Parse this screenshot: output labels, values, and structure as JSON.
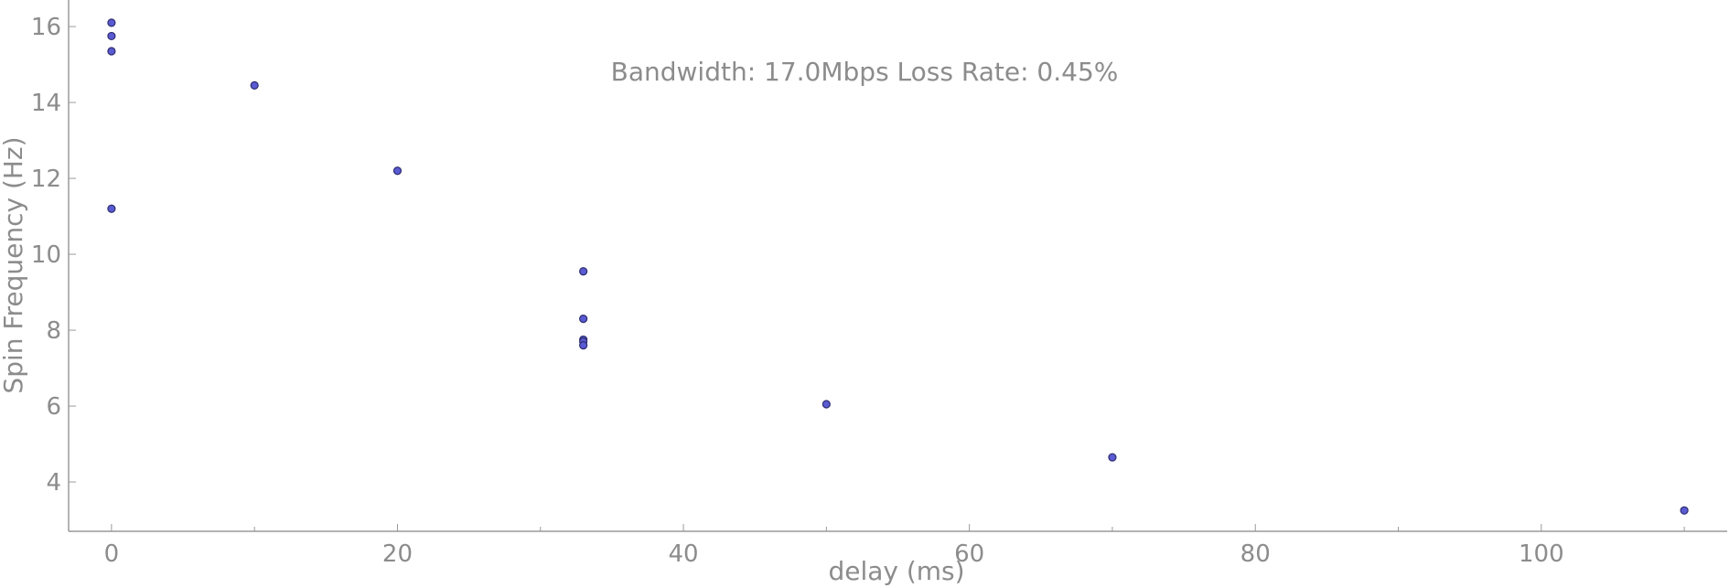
{
  "chart_data": {
    "type": "scatter",
    "title": "",
    "annotation": "Bandwidth: 17.0Mbps Loss Rate: 0.45%",
    "xlabel": "delay (ms)",
    "ylabel": "Spin Frequency (Hz)",
    "xlim": [
      -3,
      113
    ],
    "ylim": [
      2.7,
      16.7
    ],
    "x_ticks": [
      0,
      20,
      40,
      60,
      80,
      100
    ],
    "x_minor_ticks": [
      10,
      30,
      50,
      70,
      90,
      110
    ],
    "y_ticks": [
      4,
      6,
      8,
      10,
      12,
      14,
      16
    ],
    "grid": false,
    "legend": "none",
    "point_color": "#5a5ad2",
    "series": [
      {
        "points": [
          {
            "x": 0,
            "y": 16.1
          },
          {
            "x": 0,
            "y": 15.75
          },
          {
            "x": 0,
            "y": 15.35
          },
          {
            "x": 0,
            "y": 11.2
          },
          {
            "x": 10,
            "y": 14.45
          },
          {
            "x": 20,
            "y": 12.2
          },
          {
            "x": 33,
            "y": 9.55
          },
          {
            "x": 33,
            "y": 8.3
          },
          {
            "x": 33,
            "y": 7.75
          },
          {
            "x": 33,
            "y": 7.7
          },
          {
            "x": 33,
            "y": 7.6
          },
          {
            "x": 50,
            "y": 6.05
          },
          {
            "x": 70,
            "y": 4.65
          },
          {
            "x": 110,
            "y": 3.25
          }
        ]
      }
    ]
  }
}
